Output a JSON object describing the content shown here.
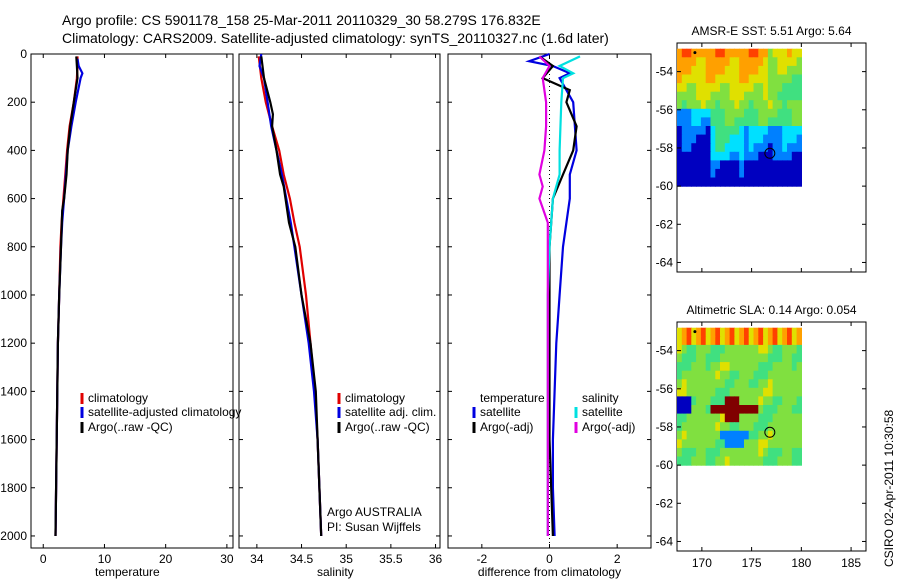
{
  "header": {
    "line1": "Argo profile: CS 5901178_158 25-Mar-2011 20110329_30 58.279S 176.832E",
    "line2": "Climatology: CARS2009. Satellite-adjusted climatology: synTS_20110327.nc (1.6d later)"
  },
  "side_label": "CSIRO 02-Apr-2011 10:30:58",
  "colors": {
    "climatology": "#e00000",
    "satellite": "#0000e0",
    "argo": "#000000",
    "satellite_diff": "#00e0e0",
    "argo_adj_diff": "#e000e0"
  },
  "chart_data": [
    {
      "type": "line",
      "name": "temperature-panel",
      "xlabel": "temperature",
      "ylabel": "",
      "xlim": [
        -2,
        31
      ],
      "ylim": [
        2050,
        0
      ],
      "xticks": [
        0,
        10,
        20,
        30
      ],
      "yticks": [
        0,
        200,
        400,
        600,
        800,
        1000,
        1200,
        1400,
        1600,
        1800,
        2000
      ],
      "legend": {
        "placement": "lower-left",
        "entries": [
          "climatology",
          "satellite-adjusted climatology",
          "Argo(..raw -QC)"
        ]
      },
      "series": [
        {
          "name": "climatology",
          "color": "#e00000",
          "points": [
            [
              5.6,
              10
            ],
            [
              5.6,
              50
            ],
            [
              5.5,
              100
            ],
            [
              5.0,
              200
            ],
            [
              4.3,
              300
            ],
            [
              3.9,
              400
            ],
            [
              3.6,
              500
            ],
            [
              3.3,
              600
            ],
            [
              3.0,
              700
            ],
            [
              2.8,
              800
            ],
            [
              2.6,
              1000
            ],
            [
              2.4,
              1200
            ],
            [
              2.3,
              1400
            ],
            [
              2.2,
              1600
            ],
            [
              2.1,
              1800
            ],
            [
              2.0,
              2000
            ]
          ]
        },
        {
          "name": "satellite-adjusted climatology",
          "color": "#0000e0",
          "points": [
            [
              5.6,
              20
            ],
            [
              5.8,
              50
            ],
            [
              6.4,
              80
            ],
            [
              6.1,
              100
            ],
            [
              5.3,
              200
            ],
            [
              4.6,
              300
            ],
            [
              4.0,
              400
            ],
            [
              3.7,
              500
            ],
            [
              3.4,
              600
            ],
            [
              3.1,
              700
            ],
            [
              2.9,
              800
            ],
            [
              2.6,
              1000
            ],
            [
              2.4,
              1200
            ],
            [
              2.3,
              1400
            ],
            [
              2.2,
              1600
            ],
            [
              2.1,
              1800
            ],
            [
              2.0,
              2000
            ]
          ]
        },
        {
          "name": "Argo(..raw -QC)",
          "color": "#000000",
          "points": [
            [
              5.4,
              10
            ],
            [
              5.5,
              50
            ],
            [
              5.6,
              100
            ],
            [
              5.0,
              200
            ],
            [
              4.4,
              300
            ],
            [
              4.0,
              400
            ],
            [
              3.8,
              500
            ],
            [
              3.4,
              600
            ],
            [
              3.1,
              650
            ],
            [
              2.9,
              800
            ],
            [
              2.6,
              1000
            ],
            [
              2.4,
              1200
            ],
            [
              2.3,
              1400
            ],
            [
              2.2,
              1600
            ],
            [
              2.1,
              1800
            ],
            [
              2.0,
              2000
            ]
          ]
        }
      ]
    },
    {
      "type": "line",
      "name": "salinity-panel",
      "xlabel": "salinity",
      "ylabel": "",
      "xlim": [
        33.8,
        36.05
      ],
      "ylim": [
        2050,
        0
      ],
      "xticks": [
        34,
        34.5,
        35,
        35.5,
        36
      ],
      "yticks": [
        0,
        200,
        400,
        600,
        800,
        1000,
        1200,
        1400,
        1600,
        1800,
        2000
      ],
      "legend": {
        "placement": "lower-right",
        "entries": [
          "climatology",
          "satellite adj. clim.",
          "Argo(..raw -QC)"
        ]
      },
      "annotations": [
        "Argo AUSTRALIA",
        "PI: Susan Wijffels"
      ],
      "series": [
        {
          "name": "climatology",
          "color": "#e00000",
          "points": [
            [
              34.02,
              10
            ],
            [
              34.05,
              100
            ],
            [
              34.1,
              200
            ],
            [
              34.17,
              300
            ],
            [
              34.25,
              400
            ],
            [
              34.3,
              500
            ],
            [
              34.37,
              600
            ],
            [
              34.42,
              700
            ],
            [
              34.48,
              800
            ],
            [
              34.55,
              1000
            ],
            [
              34.6,
              1200
            ],
            [
              34.65,
              1400
            ],
            [
              34.68,
              1600
            ],
            [
              34.7,
              1800
            ],
            [
              34.72,
              2000
            ]
          ]
        },
        {
          "name": "satellite adj. clim.",
          "color": "#0000e0",
          "points": [
            [
              34.05,
              0
            ],
            [
              34.03,
              50
            ],
            [
              34.08,
              100
            ],
            [
              34.12,
              200
            ],
            [
              34.16,
              300
            ],
            [
              34.22,
              400
            ],
            [
              34.28,
              500
            ],
            [
              34.33,
              600
            ],
            [
              34.38,
              700
            ],
            [
              34.42,
              800
            ],
            [
              34.5,
              1000
            ],
            [
              34.58,
              1200
            ],
            [
              34.64,
              1400
            ],
            [
              34.68,
              1600
            ],
            [
              34.7,
              1800
            ],
            [
              34.72,
              2000
            ]
          ]
        },
        {
          "name": "Argo(..raw -QC)",
          "color": "#000000",
          "points": [
            [
              34.05,
              10
            ],
            [
              34.08,
              100
            ],
            [
              34.15,
              200
            ],
            [
              34.18,
              250
            ],
            [
              34.17,
              300
            ],
            [
              34.22,
              400
            ],
            [
              34.26,
              500
            ],
            [
              34.3,
              550
            ],
            [
              34.32,
              600
            ],
            [
              34.36,
              700
            ],
            [
              34.43,
              800
            ],
            [
              34.5,
              1000
            ],
            [
              34.6,
              1200
            ],
            [
              34.66,
              1400
            ],
            [
              34.68,
              1600
            ],
            [
              34.7,
              1800
            ],
            [
              34.72,
              2000
            ]
          ]
        }
      ]
    },
    {
      "type": "line",
      "name": "difference-panel",
      "xlabel": "difference from climatology",
      "ylabel": "",
      "xlim": [
        -3,
        3
      ],
      "ylim": [
        2050,
        0
      ],
      "xticks": [
        -2,
        0,
        2
      ],
      "yticks": [
        0,
        200,
        400,
        600,
        800,
        1000,
        1200,
        1400,
        1600,
        1800,
        2000
      ],
      "legend": {
        "placement": "lower-center",
        "entries": [
          "temperature",
          "satellite",
          "Argo(-adj)",
          "salinity",
          "satellite",
          "Argo(-adj)"
        ]
      },
      "series": [
        {
          "name": "temperature satellite",
          "color": "#0000e0",
          "points": [
            [
              0.0,
              0
            ],
            [
              -0.6,
              30
            ],
            [
              0.1,
              50
            ],
            [
              0.6,
              80
            ],
            [
              0.3,
              100
            ],
            [
              0.7,
              200
            ],
            [
              0.8,
              400
            ],
            [
              0.6,
              500
            ],
            [
              0.6,
              600
            ],
            [
              0.5,
              700
            ],
            [
              0.4,
              800
            ],
            [
              0.3,
              1000
            ],
            [
              0.2,
              1200
            ],
            [
              0.15,
              1400
            ],
            [
              0.1,
              1600
            ],
            [
              0.1,
              1800
            ],
            [
              0.15,
              2000
            ]
          ]
        },
        {
          "name": "temperature Argo(-adj)",
          "color": "#000000",
          "points": [
            [
              -0.3,
              10
            ],
            [
              0.1,
              50
            ],
            [
              -0.2,
              100
            ],
            [
              0.6,
              150
            ],
            [
              0.5,
              200
            ],
            [
              0.8,
              300
            ],
            [
              0.7,
              400
            ],
            [
              0.4,
              500
            ],
            [
              0.1,
              600
            ],
            [
              0.05,
              700
            ],
            [
              0.0,
              800
            ],
            [
              0.0,
              1000
            ],
            [
              0.0,
              1200
            ],
            [
              0.0,
              1400
            ],
            [
              0.0,
              1600
            ],
            [
              0.05,
              1800
            ],
            [
              0.1,
              2000
            ]
          ]
        },
        {
          "name": "salinity satellite",
          "color": "#00e0e0",
          "points": [
            [
              0.9,
              10
            ],
            [
              0.3,
              50
            ],
            [
              0.7,
              80
            ],
            [
              0.4,
              100
            ],
            [
              0.35,
              200
            ],
            [
              0.3,
              400
            ],
            [
              0.3,
              500
            ],
            [
              0.1,
              600
            ],
            [
              0.05,
              700
            ],
            [
              0.0,
              800
            ],
            [
              -0.05,
              1000
            ],
            [
              -0.05,
              1200
            ],
            [
              -0.05,
              1400
            ],
            [
              -0.05,
              1600
            ],
            [
              -0.05,
              1800
            ],
            [
              -0.05,
              2000
            ]
          ]
        },
        {
          "name": "salinity Argo(-adj)",
          "color": "#e000e0",
          "points": [
            [
              -0.3,
              10
            ],
            [
              0.0,
              50
            ],
            [
              -0.2,
              100
            ],
            [
              -0.1,
              200
            ],
            [
              -0.1,
              300
            ],
            [
              -0.15,
              400
            ],
            [
              -0.3,
              500
            ],
            [
              -0.2,
              550
            ],
            [
              -0.3,
              600
            ],
            [
              -0.05,
              700
            ],
            [
              -0.05,
              800
            ],
            [
              -0.05,
              1000
            ],
            [
              -0.05,
              1200
            ],
            [
              -0.05,
              1400
            ],
            [
              -0.05,
              1600
            ],
            [
              -0.05,
              1800
            ],
            [
              -0.05,
              2000
            ]
          ]
        }
      ]
    },
    {
      "type": "heatmap",
      "name": "sst-map",
      "title": "AMSR-E SST: 5.51 Argo: 5.64",
      "xlim": [
        167.5,
        186.5
      ],
      "ylim": [
        -64.5,
        -52.5
      ],
      "xticks": [
        170,
        175,
        180,
        185
      ],
      "yticks": [
        -54,
        -56,
        -58,
        -60,
        -62,
        -64
      ],
      "data_extent": {
        "lon": [
          167.5,
          180
        ],
        "lat": [
          -60,
          -52.8
        ]
      },
      "float_position": [
        176.832,
        -58.279
      ],
      "marker_position": [
        169.3,
        -52.9
      ],
      "colorscale": [
        "#0000c0",
        "#0080ff",
        "#00e0ff",
        "#40e080",
        "#80e040",
        "#e0e000",
        "#ffa000",
        "#ff4000",
        "#c00000",
        "#800000"
      ]
    },
    {
      "type": "heatmap",
      "name": "sla-map",
      "title": "Altimetric SLA: 0.14 Argo: 0.054",
      "xlim": [
        167.5,
        186.5
      ],
      "ylim": [
        -64.5,
        -52.5
      ],
      "xticks": [
        170,
        175,
        180,
        185
      ],
      "yticks": [
        -54,
        -56,
        -58,
        -60,
        -62,
        -64
      ],
      "data_extent": {
        "lon": [
          167.5,
          180
        ],
        "lat": [
          -60,
          -52.8
        ]
      },
      "float_position": [
        176.832,
        -58.279
      ],
      "marker_position": [
        169.3,
        -52.9
      ],
      "colorscale": [
        "#0000c0",
        "#0080ff",
        "#00e0ff",
        "#40e080",
        "#80e040",
        "#e0e000",
        "#ffa000",
        "#ff4000",
        "#c00000",
        "#800000"
      ]
    }
  ]
}
